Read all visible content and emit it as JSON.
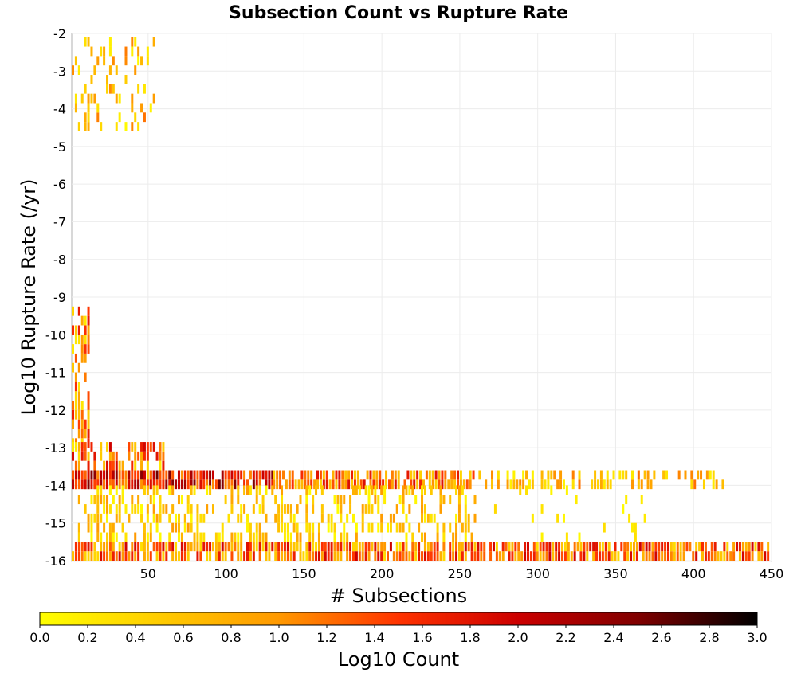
{
  "chart_data": {
    "type": "heatmap",
    "title": "Subsection Count vs Rupture Rate",
    "xlabel": "# Subsections",
    "ylabel": "Log10 Rupture Rate (/yr)",
    "xlim": [
      1,
      450
    ],
    "ylim": [
      -16,
      -2
    ],
    "x_ticks": [
      50,
      100,
      150,
      200,
      250,
      300,
      350,
      400,
      450
    ],
    "y_ticks": [
      -2,
      -3,
      -4,
      -5,
      -6,
      -7,
      -8,
      -9,
      -10,
      -11,
      -12,
      -13,
      -14,
      -15,
      -16
    ],
    "grid": true,
    "colorbar": {
      "label": "Log10 Count",
      "range": [
        0,
        3
      ],
      "ticks": [
        "0.0",
        "0.2",
        "0.4",
        "0.6",
        "0.8",
        "1.0",
        "1.2",
        "1.4",
        "1.6",
        "1.8",
        "2.0",
        "2.2",
        "2.4",
        "2.6",
        "2.8",
        "3.0"
      ],
      "colors": [
        "#ffff00",
        "#ffcc00",
        "#ff9900",
        "#ff3300",
        "#cc0000",
        "#800000",
        "#000000"
      ],
      "placement": "bottom"
    },
    "regions": [
      {
        "x": [
          1,
          55
        ],
        "y": [
          -4.6,
          -2.3
        ],
        "density": 0.3,
        "intensity": [
          0.0,
          1.2
        ]
      },
      {
        "x": [
          1,
          12
        ],
        "y": [
          -13.0,
          -9.3
        ],
        "density": 0.55,
        "intensity": [
          0.2,
          1.8
        ]
      },
      {
        "x": [
          1,
          60
        ],
        "y": [
          -14.1,
          -13.0
        ],
        "density": 0.55,
        "intensity": [
          0.2,
          2.0
        ]
      },
      {
        "x": [
          1,
          130
        ],
        "y": [
          -14.1,
          -13.6
        ],
        "density": 0.95,
        "intensity": [
          1.0,
          2.6
        ]
      },
      {
        "x": [
          130,
          260
        ],
        "y": [
          -14.1,
          -13.6
        ],
        "density": 0.85,
        "intensity": [
          0.4,
          1.9
        ]
      },
      {
        "x": [
          260,
          420
        ],
        "y": [
          -14.1,
          -13.6
        ],
        "density": 0.45,
        "intensity": [
          0.1,
          1.2
        ]
      },
      {
        "x": [
          5,
          260
        ],
        "y": [
          -15.5,
          -14.1
        ],
        "density": 0.4,
        "intensity": [
          0.0,
          1.0
        ]
      },
      {
        "x": [
          260,
          380
        ],
        "y": [
          -15.5,
          -14.1
        ],
        "density": 0.06,
        "intensity": [
          0.0,
          0.4
        ]
      },
      {
        "x": [
          1,
          450
        ],
        "y": [
          -16.0,
          -15.6
        ],
        "density": 0.9,
        "intensity": [
          0.3,
          2.0
        ]
      }
    ]
  }
}
